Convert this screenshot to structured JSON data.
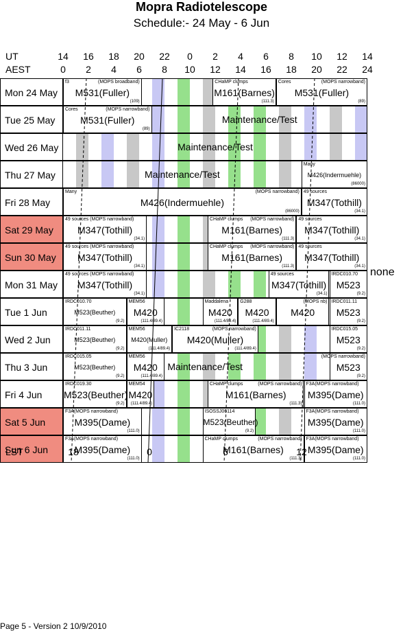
{
  "title": "Mopra Radiotelescope",
  "subtitle": "Schedule:- 24 May - 6  Jun",
  "header": {
    "ut_label": "UT",
    "aest_label": "AEST",
    "ut_ticks": [
      "14",
      "16",
      "18",
      "20",
      "22",
      "0",
      "2",
      "4",
      "6",
      "8",
      "10",
      "12",
      "14"
    ],
    "aest_ticks": [
      "0",
      "2",
      "4",
      "6",
      "8",
      "10",
      "12",
      "14",
      "16",
      "18",
      "20",
      "22",
      "24"
    ]
  },
  "days": [
    {
      "label": "Mon  24 May",
      "weekend": false,
      "blocks": [
        {
          "s": 0,
          "e": 3.1,
          "main": "M531(Fuller)",
          "tl": "f3",
          "tr": "(MOPS broadband)",
          "br": "(109)"
        },
        {
          "s": 5.9,
          "e": 8.4,
          "main": "M161(Barnes)",
          "tl": "CHaMP clumps",
          "tr": "",
          "br": "(111.3)"
        },
        {
          "s": 8.4,
          "e": 12,
          "main": "M531(Fuller)",
          "tl": "Cores",
          "tr": "(MOPS narrowband)",
          "br": "(89)"
        }
      ]
    },
    {
      "label": "Tue  25 May",
      "weekend": false,
      "blocks": [
        {
          "s": 0,
          "e": 3.5,
          "main": "M531(Fuller)",
          "tl": "Cores",
          "tr": "(MOPS narrowband)",
          "br": "(89)"
        },
        {
          "s": 3.5,
          "e": 12,
          "main": "Maintenance/Test",
          "tl": "",
          "tr": "",
          "br": "",
          "plain": true
        }
      ]
    },
    {
      "label": "Wed 26 May",
      "weekend": false,
      "blocks": [
        {
          "s": 0,
          "e": 12,
          "main": "Maintenance/Test",
          "tl": "",
          "tr": "",
          "br": "",
          "plain": true
        }
      ]
    },
    {
      "label": "Thu  27 May",
      "weekend": false,
      "blocks": [
        {
          "s": 0,
          "e": 9.4,
          "main": "Maintenance/Test",
          "tl": "",
          "tr": "",
          "br": "",
          "plain": true
        },
        {
          "s": 9.4,
          "e": 12,
          "main": "M426(Indermuehle)",
          "tl": "Many",
          "tr": "",
          "br": "(86000)",
          "cls": "tiny"
        }
      ]
    },
    {
      "label": "Fri    28 May",
      "weekend": false,
      "blocks": [
        {
          "s": 0,
          "e": 9.4,
          "main": "M426(Indermuehle)",
          "tl": "Many",
          "tr": "(MOPS narrowband)",
          "br": "(86000)"
        },
        {
          "s": 9.4,
          "e": 12,
          "main": "M347(Tothill)",
          "tl": "49 sources",
          "tr": "",
          "br": "(34.1)"
        }
      ]
    },
    {
      "label": "Sat   29 May",
      "weekend": true,
      "blocks": [
        {
          "s": 0,
          "e": 3.3,
          "main": "M347(Tothill)",
          "tl": "49 sources  (MOPS narrowband)",
          "tr": "",
          "br": "(34.1)"
        },
        {
          "s": 5.7,
          "e": 9.2,
          "main": "M161(Barnes)",
          "tl": "CHaMP clumps",
          "tr": "(MOPS narrowband)",
          "br": "(111.3)"
        },
        {
          "s": 9.2,
          "e": 12,
          "main": "M347(Tothill)",
          "tl": "49 sources",
          "tr": "",
          "br": "(34.1)"
        }
      ]
    },
    {
      "label": "Sun   30 May",
      "weekend": true,
      "blocks": [
        {
          "s": 0,
          "e": 3.3,
          "main": "M347(Tothill)",
          "tl": "49 sources  (MOPS narrowband)",
          "tr": "",
          "br": "(34.1)"
        },
        {
          "s": 5.7,
          "e": 9.2,
          "main": "M161(Barnes)",
          "tl": "CHaMP clumps",
          "tr": "(MOPS narrowband)",
          "br": "(111.3)"
        },
        {
          "s": 9.2,
          "e": 12,
          "main": "M347(Tothill)",
          "tl": "49 sources",
          "tr": "",
          "br": "(34.1)"
        }
      ]
    },
    {
      "label": "Mon  31 May",
      "weekend": false,
      "blocks": [
        {
          "s": 0,
          "e": 3.3,
          "main": "M347(Tothill)",
          "tl": "49 sources  (MOPS narrowband)",
          "tr": "",
          "br": "(34.1)"
        },
        {
          "s": 8.1,
          "e": 10.5,
          "main": "M347(Tothill)",
          "tl": "49 sources",
          "tr": "",
          "br": "(34.1)"
        },
        {
          "s": 10.5,
          "e": 12,
          "main": "M523",
          "tl": "IRDC010.70",
          "tr": "",
          "br": "(9.2)"
        }
      ]
    },
    {
      "label": "Tue    1  Jun",
      "weekend": false,
      "blocks": [
        {
          "s": 0,
          "e": 2.5,
          "main": "M523(Beuther)",
          "tl": "IRDC010.70",
          "tr": "",
          "br": "(9.2)",
          "cls": "tiny"
        },
        {
          "s": 2.5,
          "e": 4,
          "main": "M420",
          "tl": "MEM56",
          "tr": "",
          "br": "(111.4/89.4)"
        },
        {
          "s": 5.5,
          "e": 6.9,
          "main": "M420",
          "tl": "Maddalena",
          "tr": "",
          "br": "(111.4/89.4)"
        },
        {
          "s": 6.9,
          "e": 8.4,
          "main": "M420",
          "tl": "G288",
          "tr": "",
          "br": "(111.4/89.4)"
        },
        {
          "s": 8.4,
          "e": 10.5,
          "main": "M420",
          "tl": "",
          "tr": "(MOPS nb)",
          "br": ""
        },
        {
          "s": 10.5,
          "e": 12,
          "main": "M523",
          "tl": "IRDC011.11",
          "tr": "",
          "br": "(9.2)"
        }
      ]
    },
    {
      "label": "Wed   2  Jun",
      "weekend": false,
      "blocks": [
        {
          "s": 0,
          "e": 2.5,
          "main": "M523(Beuther)",
          "tl": "IRDC011.11",
          "tr": "",
          "br": "(9.2)",
          "cls": "tiny"
        },
        {
          "s": 2.5,
          "e": 4.3,
          "main": "M420(Muller)",
          "tl": "MEM56",
          "tr": "",
          "br": "(111.4/89.4)",
          "cls": "tiny"
        },
        {
          "s": 4.3,
          "e": 7.7,
          "main": "M420(Muller)",
          "tl": "IC2118",
          "tr": "(MOPS narrowband)",
          "br": "(111.4/89.4)"
        },
        {
          "s": 10.5,
          "e": 12,
          "main": "M523",
          "tl": "IRDC015.05",
          "tr": "",
          "br": "(9.2)"
        }
      ]
    },
    {
      "label": "Thu    3  Jun",
      "weekend": false,
      "blocks": [
        {
          "s": 0,
          "e": 2.5,
          "main": "M523(Beuther)",
          "tl": "IRDC015.05",
          "tr": "",
          "br": "(9.2)",
          "cls": "tiny"
        },
        {
          "s": 2.5,
          "e": 4,
          "main": "M420",
          "tl": "MEM56",
          "tr": "",
          "br": "(111.4/89.4)"
        },
        {
          "s": 4,
          "e": 7.2,
          "main": "Maintenance/Test",
          "tl": "",
          "tr": "",
          "br": "",
          "plain": true
        },
        {
          "s": 10.5,
          "e": 12,
          "main": "M523",
          "tl": "",
          "tr": "(MOPS narrowband)",
          "br": "(9.2)"
        }
      ]
    },
    {
      "label": "Fri     4  Jun",
      "weekend": false,
      "blocks": [
        {
          "s": 0,
          "e": 2.5,
          "main": "M523(Beuther)",
          "tl": "IRDC019.30",
          "tr": "",
          "br": "(9.2)"
        },
        {
          "s": 2.5,
          "e": 3.6,
          "main": "M420",
          "tl": "MEM54",
          "tr": "",
          "br": "(111.4/89.4)"
        },
        {
          "s": 5.7,
          "e": 9.5,
          "main": "M161(Barnes)",
          "tl": "CHaMP clumps",
          "tr": "(MOPS narrowband)",
          "br": "(111.3)"
        },
        {
          "s": 9.5,
          "e": 12,
          "main": "M395(Dame)",
          "tl": "F3A(MOPS narrowband)",
          "tr": "",
          "br": "(111.0)"
        }
      ]
    },
    {
      "label": "Sat    5  Jun",
      "weekend": true,
      "blocks": [
        {
          "s": 0,
          "e": 3.1,
          "main": "M395(Dame)",
          "tl": "F3A(MOPS narrowband)",
          "tr": "",
          "br": "(111.0)"
        },
        {
          "s": 5.5,
          "e": 7.6,
          "main": "M523(Beuther)",
          "tl": "ISOSSJ06114",
          "tr": "",
          "br": "(9.2)",
          "cls": "small"
        },
        {
          "s": 9.5,
          "e": 12,
          "main": "M395(Dame)",
          "tl": "F3A(MOPS narrowband)",
          "tr": "",
          "br": "(111.0)"
        }
      ]
    },
    {
      "label": "Sun    6  Jun",
      "weekend": true,
      "blocks": [
        {
          "s": 0,
          "e": 3.1,
          "main": "M395(Dame)",
          "tl": "F3A(MOPS narrowband)",
          "tr": "",
          "br": "(111.0)"
        },
        {
          "s": 5.5,
          "e": 9.5,
          "main": "M161(Barnes)",
          "tl": "CHaMP clumps",
          "tr": "(MOPS narrowband)",
          "br": "(111.3)"
        },
        {
          "s": 9.5,
          "e": 12,
          "main": "M395(Dame)",
          "tl": "F3A(MOPS narrowband)",
          "tr": "",
          "br": "(111.0)"
        }
      ]
    }
  ],
  "none_label": "none",
  "lst": {
    "label": "LST",
    "ticks": [
      "18",
      "0",
      "6",
      "12"
    ]
  },
  "footer": "Page 5 - Version 2  10/9/2010",
  "colors": {
    "weekend": "#f08c80",
    "grey_stripe": "#c8c8c8",
    "blue_stripe": "#c8c8f4",
    "green_stripe": "#96e08c"
  }
}
